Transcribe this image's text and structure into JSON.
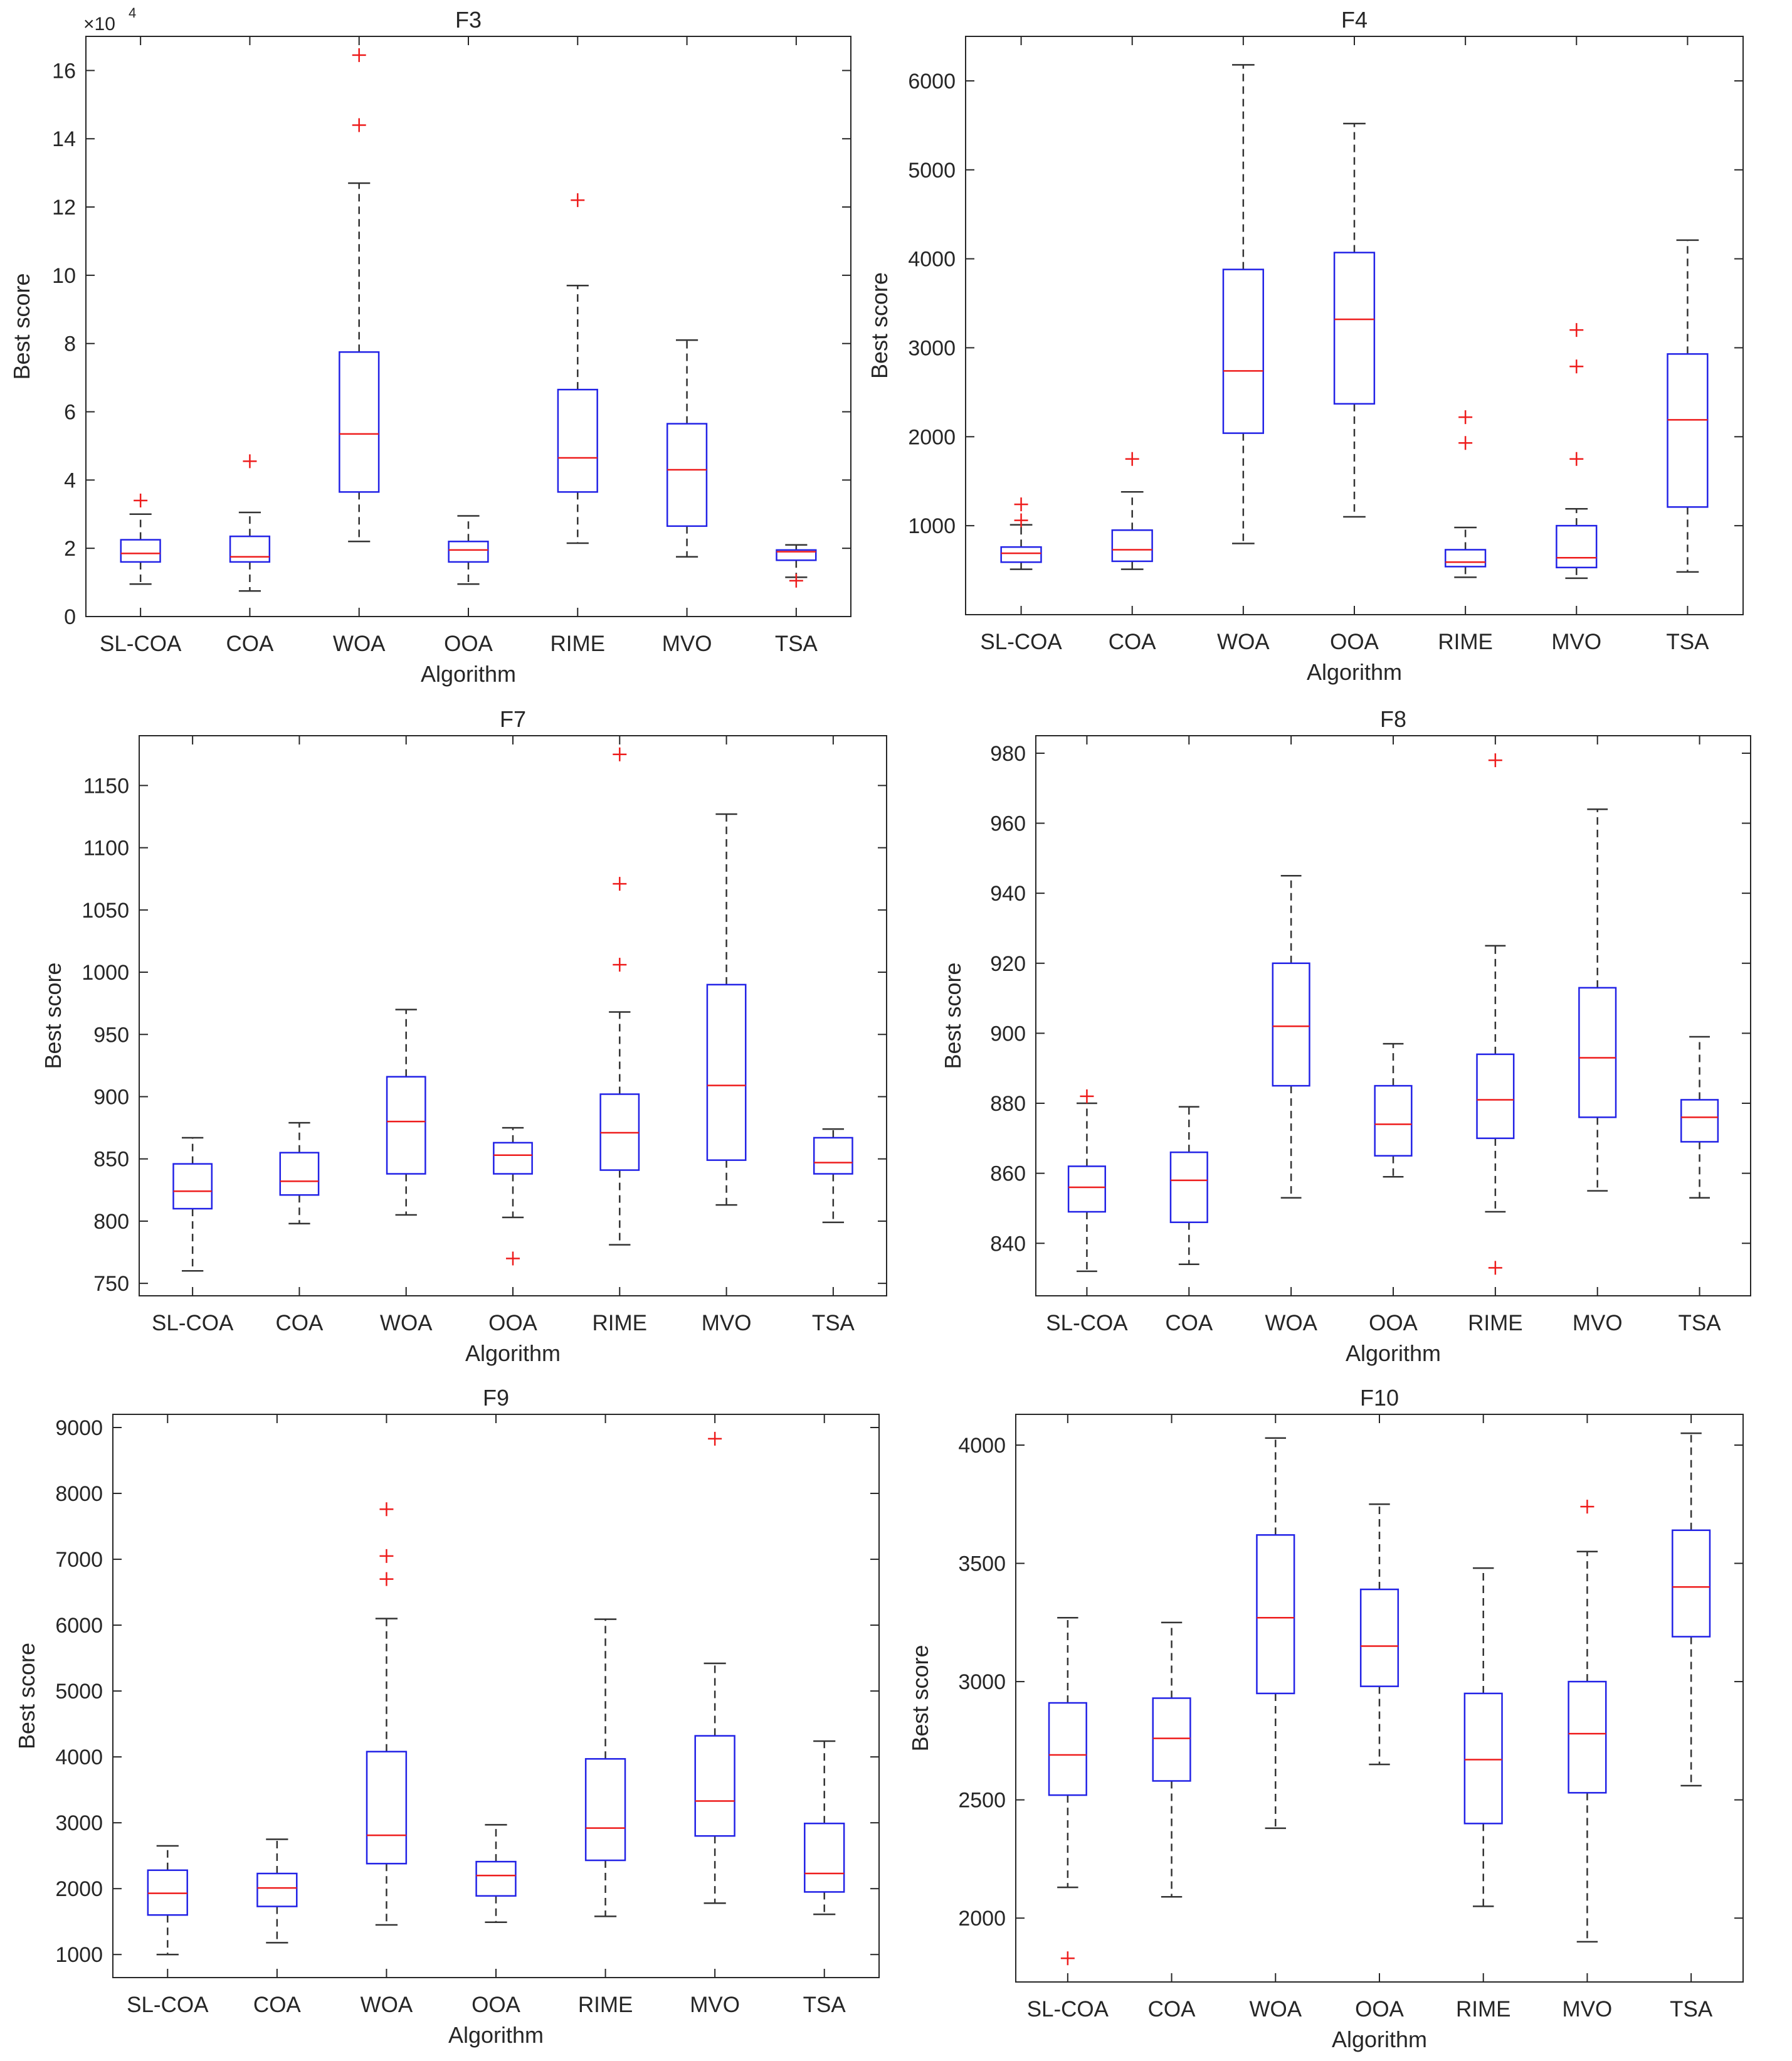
{
  "chart_data": [
    {
      "type": "boxplot",
      "title": "F3",
      "xlabel": "Algorithm",
      "ylabel": "Best score",
      "exponent_label": "×10",
      "exponent_power": "4",
      "categories": [
        "SL-COA",
        "COA",
        "WOA",
        "OOA",
        "RIME",
        "MVO",
        "TSA"
      ],
      "ylim": [
        0,
        17
      ],
      "yticks": [
        0,
        2,
        4,
        6,
        8,
        10,
        12,
        14,
        16
      ],
      "boxes": [
        {
          "lw": 0.95,
          "q1": 1.6,
          "med": 1.85,
          "q3": 2.25,
          "uw": 3.0,
          "outliers": [
            3.4
          ]
        },
        {
          "lw": 0.75,
          "q1": 1.6,
          "med": 1.75,
          "q3": 2.35,
          "uw": 3.05,
          "outliers": [
            4.55
          ]
        },
        {
          "lw": 2.2,
          "q1": 3.65,
          "med": 5.35,
          "q3": 7.75,
          "uw": 12.7,
          "outliers": [
            14.4,
            16.45
          ]
        },
        {
          "lw": 0.95,
          "q1": 1.6,
          "med": 1.95,
          "q3": 2.2,
          "uw": 2.95,
          "outliers": []
        },
        {
          "lw": 2.15,
          "q1": 3.65,
          "med": 4.65,
          "q3": 6.65,
          "uw": 9.7,
          "outliers": [
            12.2
          ]
        },
        {
          "lw": 1.75,
          "q1": 2.65,
          "med": 4.3,
          "q3": 5.65,
          "uw": 8.1,
          "outliers": []
        },
        {
          "lw": 1.15,
          "q1": 1.65,
          "med": 1.9,
          "q3": 1.95,
          "uw": 2.1,
          "outliers": [
            1.05
          ]
        }
      ]
    },
    {
      "type": "boxplot",
      "title": "F4",
      "xlabel": "Algorithm",
      "ylabel": "Best score",
      "categories": [
        "SL-COA",
        "COA",
        "WOA",
        "OOA",
        "RIME",
        "MVO",
        "TSA"
      ],
      "ylim": [
        0,
        6500
      ],
      "yticks": [
        1000,
        2000,
        3000,
        4000,
        5000,
        6000
      ],
      "boxes": [
        {
          "lw": 510,
          "q1": 590,
          "med": 690,
          "q3": 760,
          "uw": 1010,
          "outliers": [
            1060,
            1240
          ]
        },
        {
          "lw": 510,
          "q1": 600,
          "med": 730,
          "q3": 950,
          "uw": 1380,
          "outliers": [
            1750
          ]
        },
        {
          "lw": 800,
          "q1": 2040,
          "med": 2740,
          "q3": 3880,
          "uw": 6180,
          "outliers": []
        },
        {
          "lw": 1100,
          "q1": 2370,
          "med": 3320,
          "q3": 4070,
          "uw": 5520,
          "outliers": []
        },
        {
          "lw": 420,
          "q1": 540,
          "med": 590,
          "q3": 730,
          "uw": 980,
          "outliers": [
            1930,
            2220
          ]
        },
        {
          "lw": 410,
          "q1": 530,
          "med": 640,
          "q3": 1000,
          "uw": 1190,
          "outliers": [
            1750,
            2790,
            3200
          ]
        },
        {
          "lw": 480,
          "q1": 1210,
          "med": 2190,
          "q3": 2930,
          "uw": 4210,
          "outliers": []
        }
      ]
    },
    {
      "type": "boxplot",
      "title": "F7",
      "xlabel": "Algorithm",
      "ylabel": "Best score",
      "categories": [
        "SL-COA",
        "COA",
        "WOA",
        "OOA",
        "RIME",
        "MVO",
        "TSA"
      ],
      "ylim": [
        740,
        1190
      ],
      "yticks": [
        750,
        800,
        850,
        900,
        950,
        1000,
        1050,
        1100,
        1150
      ],
      "boxes": [
        {
          "lw": 760,
          "q1": 810,
          "med": 824,
          "q3": 846,
          "uw": 867,
          "outliers": []
        },
        {
          "lw": 798,
          "q1": 821,
          "med": 832,
          "q3": 855,
          "uw": 879,
          "outliers": []
        },
        {
          "lw": 805,
          "q1": 838,
          "med": 880,
          "q3": 916,
          "uw": 970,
          "outliers": []
        },
        {
          "lw": 803,
          "q1": 838,
          "med": 853,
          "q3": 863,
          "uw": 875,
          "outliers": [
            770
          ]
        },
        {
          "lw": 781,
          "q1": 841,
          "med": 871,
          "q3": 902,
          "uw": 968,
          "outliers": [
            1006,
            1071,
            1175
          ]
        },
        {
          "lw": 813,
          "q1": 849,
          "med": 909,
          "q3": 990,
          "uw": 1127,
          "outliers": []
        },
        {
          "lw": 799,
          "q1": 838,
          "med": 847,
          "q3": 867,
          "uw": 874,
          "outliers": []
        }
      ]
    },
    {
      "type": "boxplot",
      "title": "F8",
      "xlabel": "Algorithm",
      "ylabel": "Best score",
      "categories": [
        "SL-COA",
        "COA",
        "WOA",
        "OOA",
        "RIME",
        "MVO",
        "TSA"
      ],
      "ylim": [
        825,
        985
      ],
      "yticks": [
        840,
        860,
        880,
        900,
        920,
        940,
        960,
        980
      ],
      "boxes": [
        {
          "lw": 832,
          "q1": 849,
          "med": 856,
          "q3": 862,
          "uw": 880,
          "outliers": [
            882
          ]
        },
        {
          "lw": 834,
          "q1": 846,
          "med": 858,
          "q3": 866,
          "uw": 879,
          "outliers": []
        },
        {
          "lw": 853,
          "q1": 885,
          "med": 902,
          "q3": 920,
          "uw": 945,
          "outliers": []
        },
        {
          "lw": 859,
          "q1": 865,
          "med": 874,
          "q3": 885,
          "uw": 897,
          "outliers": []
        },
        {
          "lw": 849,
          "q1": 870,
          "med": 881,
          "q3": 894,
          "uw": 925,
          "outliers": [
            833,
            978
          ]
        },
        {
          "lw": 855,
          "q1": 876,
          "med": 893,
          "q3": 913,
          "uw": 964,
          "outliers": []
        },
        {
          "lw": 853,
          "q1": 869,
          "med": 876,
          "q3": 881,
          "uw": 899,
          "outliers": []
        }
      ]
    },
    {
      "type": "boxplot",
      "title": "F9",
      "xlabel": "Algorithm",
      "ylabel": "Best score",
      "categories": [
        "SL-COA",
        "COA",
        "WOA",
        "OOA",
        "RIME",
        "MVO",
        "TSA"
      ],
      "ylim": [
        650,
        9200
      ],
      "yticks": [
        1000,
        2000,
        3000,
        4000,
        5000,
        6000,
        7000,
        8000,
        9000
      ],
      "boxes": [
        {
          "lw": 1000,
          "q1": 1600,
          "med": 1930,
          "q3": 2280,
          "uw": 2650,
          "outliers": []
        },
        {
          "lw": 1180,
          "q1": 1730,
          "med": 2010,
          "q3": 2230,
          "uw": 2750,
          "outliers": []
        },
        {
          "lw": 1450,
          "q1": 2380,
          "med": 2810,
          "q3": 4080,
          "uw": 6100,
          "outliers": [
            6700,
            7050,
            7760
          ]
        },
        {
          "lw": 1490,
          "q1": 1890,
          "med": 2200,
          "q3": 2410,
          "uw": 2970,
          "outliers": []
        },
        {
          "lw": 1580,
          "q1": 2430,
          "med": 2920,
          "q3": 3970,
          "uw": 6090,
          "outliers": []
        },
        {
          "lw": 1780,
          "q1": 2800,
          "med": 3330,
          "q3": 4320,
          "uw": 5420,
          "outliers": [
            8830
          ]
        },
        {
          "lw": 1610,
          "q1": 1950,
          "med": 2230,
          "q3": 2990,
          "uw": 4240,
          "outliers": []
        }
      ]
    },
    {
      "type": "boxplot",
      "title": "F10",
      "xlabel": "Algorithm",
      "ylabel": "Best score",
      "categories": [
        "SL-COA",
        "COA",
        "WOA",
        "OOA",
        "RIME",
        "MVO",
        "TSA"
      ],
      "ylim": [
        1730,
        4130
      ],
      "yticks": [
        2000,
        2500,
        3000,
        3500,
        4000
      ],
      "boxes": [
        {
          "lw": 2130,
          "q1": 2520,
          "med": 2690,
          "q3": 2910,
          "uw": 3270,
          "outliers": [
            1830
          ]
        },
        {
          "lw": 2090,
          "q1": 2580,
          "med": 2760,
          "q3": 2930,
          "uw": 3250,
          "outliers": []
        },
        {
          "lw": 2380,
          "q1": 2950,
          "med": 3270,
          "q3": 3620,
          "uw": 4030,
          "outliers": []
        },
        {
          "lw": 2650,
          "q1": 2980,
          "med": 3150,
          "q3": 3390,
          "uw": 3750,
          "outliers": []
        },
        {
          "lw": 2050,
          "q1": 2400,
          "med": 2670,
          "q3": 2950,
          "uw": 3480,
          "outliers": []
        },
        {
          "lw": 1900,
          "q1": 2530,
          "med": 2780,
          "q3": 3000,
          "uw": 3550,
          "outliers": [
            3740
          ]
        },
        {
          "lw": 2560,
          "q1": 3190,
          "med": 3400,
          "q3": 3640,
          "uw": 4050,
          "outliers": []
        }
      ]
    }
  ]
}
